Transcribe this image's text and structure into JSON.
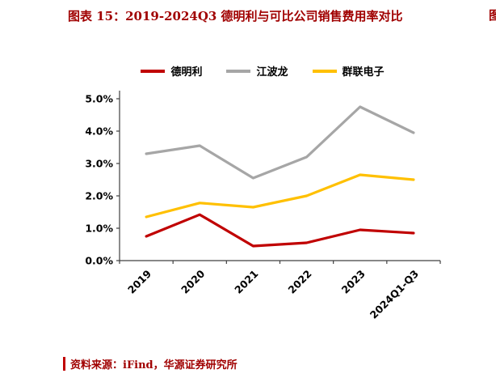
{
  "header": {
    "title": "图表 15：2019-2024Q3 德明利与可比公司销售费用率对比",
    "edge_fragment": "图"
  },
  "footer": {
    "source": "资料来源：iFind，华源证券研究所"
  },
  "colors": {
    "title_red": "#a00000",
    "accent_bar_red": "#c00000",
    "axis_black": "#404040"
  },
  "chart_data": {
    "type": "line",
    "title": "图表 15：2019-2024Q3 德明利与可比公司销售费用率对比",
    "categories": [
      "2019",
      "2020",
      "2021",
      "2022",
      "2023",
      "2024Q1-Q3"
    ],
    "series": [
      {
        "name": "德明利",
        "color": "#c00000",
        "values": [
          0.75,
          1.42,
          0.45,
          0.55,
          0.95,
          0.85
        ]
      },
      {
        "name": "江波龙",
        "color": "#a6a6a6",
        "values": [
          3.3,
          3.55,
          2.55,
          3.2,
          4.75,
          3.95
        ]
      },
      {
        "name": "群联电子",
        "color": "#ffc000",
        "values": [
          1.35,
          1.78,
          1.65,
          2.0,
          2.65,
          2.5
        ]
      }
    ],
    "xlabel": "",
    "ylabel": "",
    "ylim": [
      0,
      5
    ],
    "ytick_step": 1,
    "ytick_labels": [
      "0.0%",
      "1.0%",
      "2.0%",
      "3.0%",
      "4.0%",
      "5.0%"
    ],
    "grid": false,
    "legend_position": "top"
  }
}
